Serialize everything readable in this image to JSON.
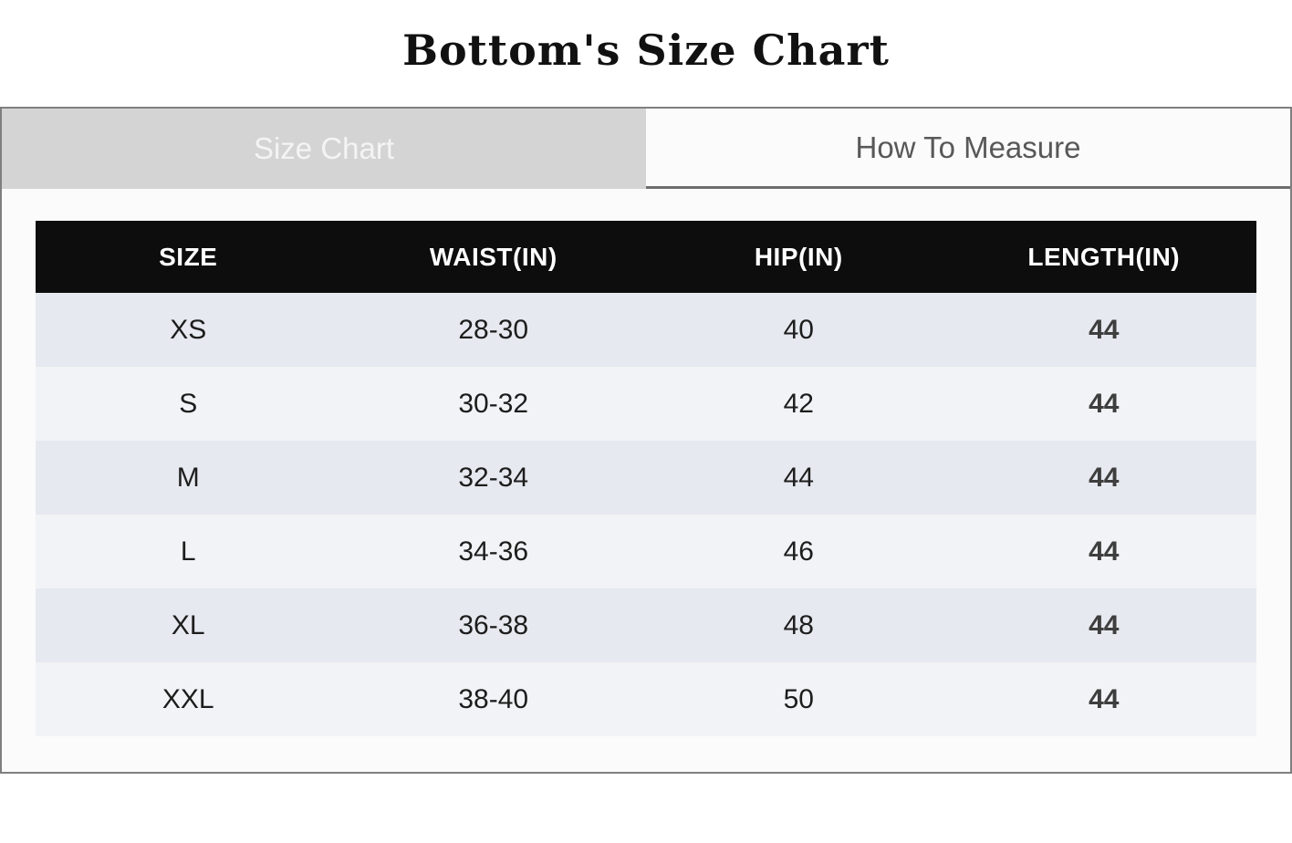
{
  "page": {
    "title": "Bottom's Size Chart"
  },
  "tabs": [
    {
      "label": "Size Chart",
      "active": true
    },
    {
      "label": "How To Measure",
      "active": false
    }
  ],
  "chart_data": {
    "type": "table",
    "title": "Bottom's Size Chart",
    "columns": [
      "SIZE",
      "WAIST(IN)",
      "HIP(IN)",
      "LENGTH(IN)"
    ],
    "rows": [
      [
        "XS",
        "28-30",
        "40",
        "44"
      ],
      [
        "S",
        "30-32",
        "42",
        "44"
      ],
      [
        "M",
        "32-34",
        "44",
        "44"
      ],
      [
        "L",
        "34-36",
        "46",
        "44"
      ],
      [
        "XL",
        "36-38",
        "48",
        "44"
      ],
      [
        "XXL",
        "38-40",
        "50",
        "44"
      ]
    ]
  },
  "colors": {
    "header_bg": "#0d0d0d",
    "header_text": "#ffffff",
    "row_stripe_dark": "#e6e9ef",
    "row_stripe_light": "#f2f3f6",
    "active_tab_bg": "#d4d4d4",
    "active_tab_text": "#f4f4f4",
    "inactive_tab_text": "#585858",
    "border": "#7f7f7f"
  }
}
